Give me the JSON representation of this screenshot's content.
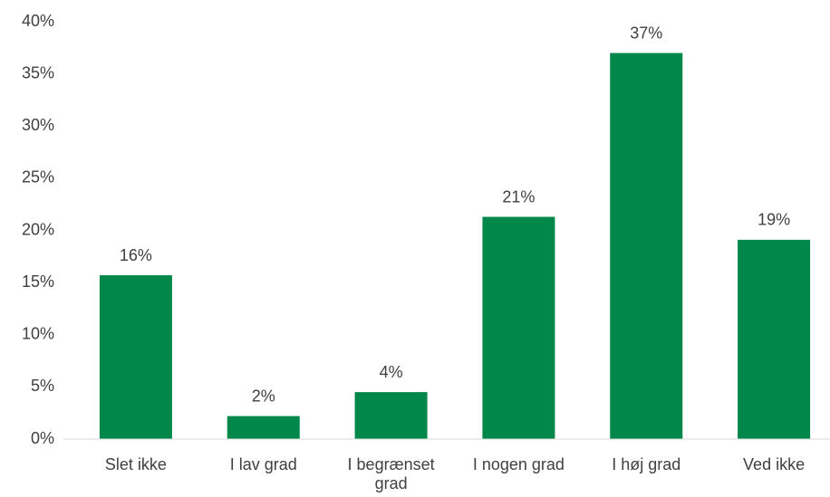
{
  "chart_data": {
    "type": "bar",
    "categories": [
      "Slet ikke",
      "I lav grad",
      "I begrænset grad",
      "I nogen grad",
      "I høj grad",
      "Ved ikke"
    ],
    "values": [
      15.7,
      2.2,
      4.5,
      21.3,
      37,
      19.1
    ],
    "value_labels": [
      "16%",
      "2%",
      "4%",
      "21%",
      "37%",
      "19%"
    ],
    "color": "#008749",
    "ylim": [
      0,
      40
    ],
    "yticks": [
      {
        "value": 0,
        "label": "0%"
      },
      {
        "value": 5,
        "label": "5%"
      },
      {
        "value": 10,
        "label": "10%"
      },
      {
        "value": 15,
        "label": "15%"
      },
      {
        "value": 20,
        "label": "20%"
      },
      {
        "value": 25,
        "label": "25%"
      },
      {
        "value": 30,
        "label": "30%"
      },
      {
        "value": 35,
        "label": "35%"
      },
      {
        "value": 40,
        "label": "40%"
      }
    ],
    "grid": false
  }
}
